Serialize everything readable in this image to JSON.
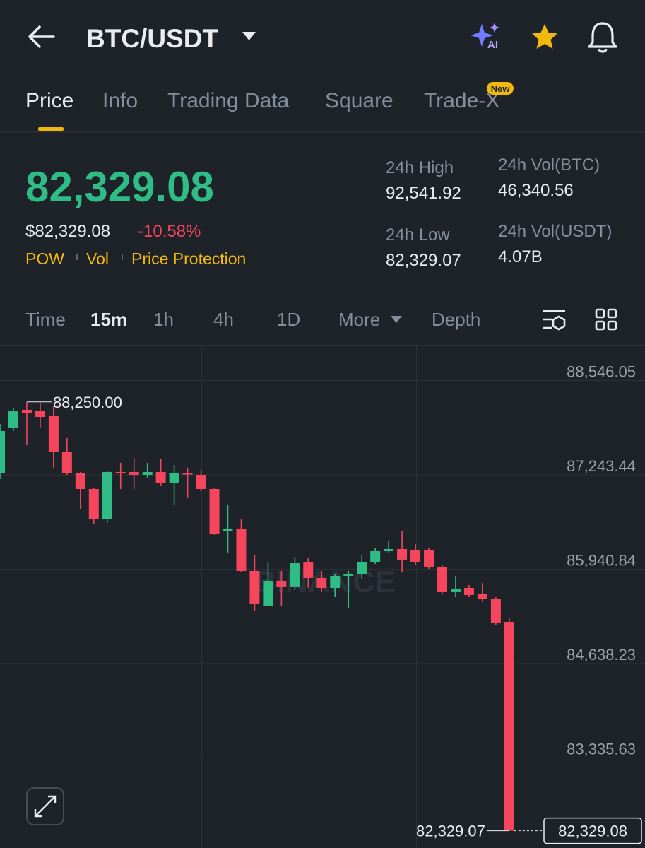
{
  "header": {
    "pair": "BTC/USDT"
  },
  "tabs": [
    "Price",
    "Info",
    "Trading Data",
    "Square",
    "Trade-X"
  ],
  "tab_badge": "New",
  "price": {
    "last": "82,329.08",
    "fiat": "$82,329.08",
    "change": "-10.58%"
  },
  "tags": [
    "POW",
    "Vol",
    "Price Protection"
  ],
  "stats": [
    {
      "label": "24h High",
      "value": "92,541.92"
    },
    {
      "label": "24h Vol(BTC)",
      "value": "46,340.56"
    },
    {
      "label": "24h Low",
      "value": "82,329.07"
    },
    {
      "label": "24h Vol(USDT)",
      "value": "4.07B"
    }
  ],
  "timeframes": [
    "Time",
    "15m",
    "1h",
    "4h",
    "1D",
    "More",
    "Depth"
  ],
  "chart_data": {
    "type": "candlestick",
    "ylim": [
      82091,
      89019
    ],
    "yticks": [
      {
        "value": 88546.05,
        "label": "88,546.05"
      },
      {
        "value": 87243.44,
        "label": "87,243.44"
      },
      {
        "value": 85940.84,
        "label": "85,940.84"
      },
      {
        "value": 84638.23,
        "label": "84,638.23"
      },
      {
        "value": 83335.63,
        "label": "83,335.63"
      }
    ],
    "grid": true,
    "open": [
      87263,
      87897,
      88141,
      88121,
      88063,
      87556,
      87263,
      87048,
      86629,
      87282,
      87282,
      87243,
      87282,
      87136,
      87263,
      87243,
      87048,
      86463,
      86502,
      85916,
      85438,
      85780,
      85702,
      86043,
      85819,
      85682,
      85848,
      85877,
      86043,
      86189,
      86219,
      86209,
      86209,
      85975,
      85624,
      85682,
      85604,
      85526,
      85214
    ],
    "high": [
      87946,
      88160,
      88250,
      88239,
      88190,
      87751,
      87282,
      87068,
      87302,
      87409,
      87478,
      87409,
      87458,
      87380,
      87341,
      87312,
      87068,
      86824,
      86629,
      86141,
      86043,
      85916,
      86112,
      86092,
      85916,
      85877,
      85916,
      86141,
      86238,
      86336,
      86463,
      86287,
      86238,
      85995,
      85848,
      85721,
      85750,
      85555,
      85263
    ],
    "low": [
      87185,
      87848,
      87653,
      87897,
      87341,
      87243,
      86775,
      86560,
      86580,
      87048,
      87048,
      87204,
      87087,
      86834,
      86921,
      87019,
      86414,
      86170,
      85897,
      85360,
      85429,
      85429,
      85653,
      85682,
      85624,
      85555,
      85409,
      85799,
      86014,
      86170,
      85897,
      85995,
      85946,
      85604,
      85555,
      85555,
      85487,
      85165,
      82329.07
    ],
    "close": [
      87848,
      88121,
      88092,
      88043,
      87556,
      87263,
      87048,
      86629,
      87282,
      87263,
      87243,
      87282,
      87136,
      87263,
      87253,
      87048,
      86433,
      86502,
      85916,
      85458,
      85780,
      85702,
      86024,
      85819,
      85682,
      85848,
      85877,
      86043,
      86189,
      86219,
      86073,
      86043,
      85975,
      85624,
      85663,
      85585,
      85526,
      85194,
      82329.08
    ],
    "up_color": "#2ebd85",
    "down_color": "#f6465d",
    "high_label": "88,250.00",
    "low_label": "82,329.07",
    "last_label": "82,329.08",
    "watermark": "BINANCE"
  }
}
